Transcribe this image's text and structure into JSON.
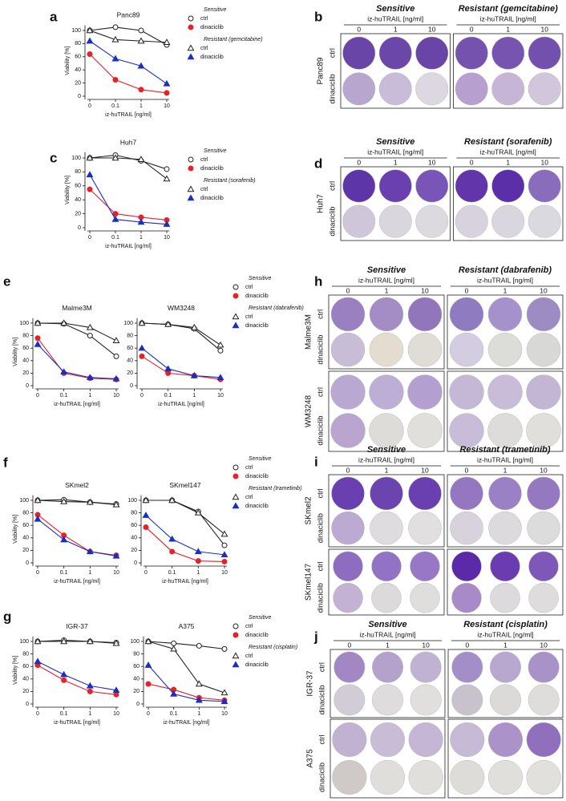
{
  "chart_data": [
    {
      "type": "line",
      "label": "a",
      "title": "Panc89",
      "ylabel": "Viability [%]",
      "xlabel": "iz-huTRAIL [ng/ml]",
      "categories": [
        "0",
        "0.1",
        "1",
        "10"
      ],
      "ylim": [
        0,
        108
      ],
      "yticks": [
        0,
        20,
        40,
        60,
        80,
        100
      ],
      "series": [
        {
          "group": "Sensitive",
          "name": "ctrl",
          "color": "#222222",
          "marker": "circle-open",
          "values": [
            100,
            105,
            100,
            78
          ]
        },
        {
          "name": "dinaciclib",
          "color": "#e8202a",
          "marker": "circle",
          "values": [
            64,
            25,
            10,
            5
          ]
        },
        {
          "group": "Resistant (gemcitabine)",
          "name": "ctrl",
          "color": "#222222",
          "marker": "triangle-open",
          "values": [
            100,
            86,
            84,
            82
          ]
        },
        {
          "name": "dinaciclib",
          "color": "#1a2fc0",
          "marker": "triangle",
          "values": [
            84,
            57,
            46,
            19
          ]
        }
      ]
    },
    {
      "type": "line",
      "label": "c",
      "title": "Huh7",
      "ylabel": "Viability [%]",
      "xlabel": "iz-huTRAIL [ng/ml]",
      "categories": [
        "0",
        "0.1",
        "1",
        "10"
      ],
      "ylim": [
        0,
        108
      ],
      "yticks": [
        0,
        20,
        40,
        60,
        80,
        100
      ],
      "series": [
        {
          "group": "Sensitive",
          "name": "ctrl",
          "color": "#222222",
          "marker": "circle-open",
          "values": [
            100,
            104,
            96,
            84
          ]
        },
        {
          "name": "dinaciclib",
          "color": "#e8202a",
          "marker": "circle",
          "values": [
            55,
            20,
            15,
            11
          ]
        },
        {
          "group": "Resistant (sorafenib)",
          "name": "ctrl",
          "color": "#222222",
          "marker": "triangle-open",
          "values": [
            100,
            100,
            98,
            70
          ]
        },
        {
          "name": "dinaciclib",
          "color": "#1a2fc0",
          "marker": "triangle",
          "values": [
            76,
            12,
            8,
            5
          ]
        }
      ]
    },
    {
      "type": "line",
      "label": "e",
      "title": "Malme3M",
      "ylabel": "Viability [%]",
      "xlabel": "iz-huTRAIL [ng/ml]",
      "categories": [
        "0",
        "0.1",
        "1",
        "10"
      ],
      "ylim": [
        0,
        108
      ],
      "yticks": [
        0,
        20,
        40,
        60,
        80,
        100
      ],
      "series": [
        {
          "color": "#222222",
          "marker": "circle-open",
          "values": [
            100,
            99,
            80,
            47
          ]
        },
        {
          "color": "#e8202a",
          "marker": "circle",
          "values": [
            76,
            20,
            12,
            10
          ]
        },
        {
          "color": "#222222",
          "marker": "triangle-open",
          "values": [
            100,
            100,
            93,
            72
          ]
        },
        {
          "color": "#1a2fc0",
          "marker": "triangle",
          "values": [
            66,
            22,
            13,
            11
          ]
        }
      ]
    },
    {
      "type": "line",
      "title": "WM3248",
      "xlabel": "iz-huTRAIL [ng/ml]",
      "categories": [
        "0",
        "0.1",
        "1",
        "10"
      ],
      "ylim": [
        0,
        108
      ],
      "yticks": [
        0,
        20,
        40,
        60,
        80,
        100
      ],
      "series": [
        {
          "group": "Sensitive",
          "name": "ctrl",
          "color": "#222222",
          "marker": "circle-open",
          "values": [
            100,
            98,
            91,
            56
          ]
        },
        {
          "name": "dinaciclib",
          "color": "#e8202a",
          "marker": "circle",
          "values": [
            47,
            20,
            16,
            10
          ]
        },
        {
          "group": "Resistant (dabrafenib)",
          "name": "ctrl",
          "color": "#222222",
          "marker": "triangle-open",
          "values": [
            100,
            98,
            93,
            65
          ]
        },
        {
          "name": "dinaciclib",
          "color": "#1a2fc0",
          "marker": "triangle",
          "values": [
            60,
            27,
            16,
            13
          ]
        }
      ]
    },
    {
      "type": "line",
      "label": "f",
      "title": "SKmel2",
      "ylabel": "Viability [%]",
      "xlabel": "iz-huTRAIL [ng/ml]",
      "categories": [
        "0",
        "0.1",
        "1",
        "10"
      ],
      "ylim": [
        0,
        108
      ],
      "yticks": [
        0,
        20,
        40,
        60,
        80,
        100
      ],
      "series": [
        {
          "color": "#222222",
          "marker": "circle-open",
          "values": [
            100,
            101,
            97,
            94
          ]
        },
        {
          "color": "#e8202a",
          "marker": "circle",
          "values": [
            77,
            44,
            18,
            12
          ]
        },
        {
          "color": "#222222",
          "marker": "triangle-open",
          "values": [
            100,
            98,
            97,
            93
          ]
        },
        {
          "color": "#1a2fc0",
          "marker": "triangle",
          "values": [
            70,
            37,
            18,
            11
          ]
        }
      ]
    },
    {
      "type": "line",
      "title": "SKmel147",
      "xlabel": "iz-huTRAIL [ng/ml]",
      "categories": [
        "0",
        "0.1",
        "1",
        "10"
      ],
      "ylim": [
        0,
        108
      ],
      "yticks": [
        0,
        20,
        40,
        60,
        80,
        100
      ],
      "series": [
        {
          "group": "Sensitive",
          "name": "ctrl",
          "color": "#222222",
          "marker": "circle-open",
          "values": [
            100,
            100,
            82,
            28
          ]
        },
        {
          "name": "dinaciclib",
          "color": "#e8202a",
          "marker": "circle",
          "values": [
            57,
            18,
            3,
            2
          ]
        },
        {
          "group": "Resistant (trametinib)",
          "name": "ctrl",
          "color": "#222222",
          "marker": "triangle-open",
          "values": [
            100,
            100,
            80,
            46
          ]
        },
        {
          "name": "dinaciclib",
          "color": "#1a2fc0",
          "marker": "triangle",
          "values": [
            76,
            38,
            18,
            13
          ]
        }
      ]
    },
    {
      "type": "line",
      "label": "g",
      "title": "IGR-37",
      "ylabel": "Viability [%]",
      "xlabel": "iz-huTRAIL [ng/ml]",
      "categories": [
        "0",
        "0.1",
        "1",
        "10"
      ],
      "ylim": [
        0,
        108
      ],
      "yticks": [
        0,
        20,
        40,
        60,
        80,
        100
      ],
      "series": [
        {
          "color": "#222222",
          "marker": "circle-open",
          "values": [
            100,
            102,
            100,
            98
          ]
        },
        {
          "color": "#e8202a",
          "marker": "circle",
          "values": [
            62,
            38,
            20,
            15
          ]
        },
        {
          "color": "#222222",
          "marker": "triangle-open",
          "values": [
            100,
            100,
            100,
            97
          ]
        },
        {
          "color": "#1a2fc0",
          "marker": "triangle",
          "values": [
            68,
            47,
            29,
            22
          ]
        }
      ]
    },
    {
      "type": "line",
      "title": "A375",
      "xlabel": "iz-huTRAIL [ng/ml]",
      "categories": [
        "0",
        "0.1",
        "1",
        "10"
      ],
      "ylim": [
        0,
        108
      ],
      "yticks": [
        0,
        20,
        40,
        60,
        80,
        100
      ],
      "series": [
        {
          "group": "Sensitive",
          "name": "ctrl",
          "color": "#222222",
          "marker": "circle-open",
          "values": [
            100,
            97,
            93,
            88
          ]
        },
        {
          "name": "dinaciclib",
          "color": "#e8202a",
          "marker": "circle",
          "values": [
            32,
            23,
            10,
            6
          ]
        },
        {
          "group": "Resistant (cisplatin)",
          "name": "ctrl",
          "color": "#222222",
          "marker": "triangle-open",
          "values": [
            100,
            88,
            32,
            18
          ]
        },
        {
          "name": "dinaciclib",
          "color": "#1a2fc0",
          "marker": "triangle",
          "values": [
            62,
            16,
            6,
            4
          ]
        }
      ]
    }
  ],
  "plates": [
    {
      "label": "b",
      "columns": [
        {
          "title": "Sensitive",
          "unit": "iz-huTRAIL [ng/ml]",
          "doses": [
            "0",
            "1",
            "10"
          ]
        },
        {
          "title": "Resistant (gemcitabine)",
          "unit": "iz-huTRAIL [ng/ml]",
          "doses": [
            "0",
            "1",
            "10"
          ]
        }
      ],
      "blocks": [
        {
          "cell_line": "Panc89",
          "rows": [
            "ctrl",
            "dinaciclib"
          ],
          "colors": [
            [
              "#6a45a8",
              "#6c47aa",
              "#6a45a8",
              "#7552ae",
              "#7654b0",
              "#7350ae"
            ],
            [
              "#b9a6cf",
              "#c9bcd8",
              "#dcd7e0",
              "#b79fcf",
              "#c6b5d6",
              "#d2c6dc"
            ]
          ]
        }
      ]
    },
    {
      "label": "d",
      "columns": [
        {
          "title": "Sensitive",
          "unit": "iz-huTRAIL [ng/ml]",
          "doses": [
            "0",
            "1",
            "10"
          ]
        },
        {
          "title": "Resistant (sorafenib)",
          "unit": "iz-huTRAIL [ng/ml]",
          "doses": [
            "0",
            "1",
            "10"
          ]
        }
      ],
      "blocks": [
        {
          "cell_line": "Huh7",
          "rows": [
            "ctrl",
            "dinaciclib"
          ],
          "colors": [
            [
              "#5e35a8",
              "#6a40b0",
              "#7a55b8",
              "#6236aa",
              "#5a2fa8",
              "#8a6cbc"
            ],
            [
              "#cfc6d9",
              "#dad6de",
              "#dcdadf",
              "#d8d2df",
              "#d9d6df",
              "#dbd9e0"
            ]
          ]
        }
      ]
    },
    {
      "label": "h",
      "columns": [
        {
          "title": "Sensitive",
          "unit": "iz-huTRAIL [ng/ml]",
          "doses": [
            "0",
            "1",
            "10"
          ]
        },
        {
          "title": "Resistant (dabrafenib)",
          "unit": "iz-huTRAIL [ng/ml]",
          "doses": [
            "0",
            "1",
            "10"
          ]
        }
      ],
      "blocks": [
        {
          "cell_line": "Malme3M",
          "rows": [
            "ctrl",
            "dinaciclib"
          ],
          "colors": [
            [
              "#9a80c0",
              "#a48cc4",
              "#9276bc",
              "#8f7bc0",
              "#a592cc",
              "#9d8cc4"
            ],
            [
              "#c9bcd6",
              "#e4dccf",
              "#e0ddd6",
              "#d4cce0",
              "#dcdcd8",
              "#d8d8d6"
            ]
          ]
        },
        {
          "cell_line": "WM3248",
          "rows": [
            "ctrl",
            "dinaciclib"
          ],
          "colors": [
            [
              "#b9a8d2",
              "#bcaed4",
              "#b39fd0",
              "#c4b8d6",
              "#c8bcd8",
              "#c2b6d4"
            ],
            [
              "#b9a5d0",
              "#dedcd8",
              "#e0dfdb",
              "#c8bcd8",
              "#dedcda",
              "#e0dfdb"
            ]
          ]
        }
      ]
    },
    {
      "label": "i",
      "columns": [
        {
          "title": "Sensitive",
          "unit": "iz-huTRAIL [ng/ml]",
          "doses": [
            "0",
            "1",
            "10"
          ]
        },
        {
          "title": "Resistant (trametinib)",
          "unit": "iz-huTRAIL [ng/ml]",
          "doses": [
            "0",
            "1",
            "10"
          ]
        }
      ],
      "blocks": [
        {
          "cell_line": "SKmel2",
          "rows": [
            "ctrl",
            "dinaciclib"
          ],
          "colors": [
            [
              "#6a3fb0",
              "#6c44b0",
              "#6a40b0",
              "#9477c0",
              "#9a80c4",
              "#9478c0"
            ],
            [
              "#bdaad2",
              "#dfdcdf",
              "#e1dfe0",
              "#d8d2dc",
              "#dcdadc",
              "#dddcdc"
            ]
          ]
        },
        {
          "cell_line": "SKmel147",
          "rows": [
            "ctrl",
            "dinaciclib"
          ],
          "colors": [
            [
              "#8e6cc0",
              "#9272c4",
              "#9878c6",
              "#5a2aa8",
              "#6a3cb0",
              "#7d58b8"
            ],
            [
              "#c4b2d4",
              "#dddadc",
              "#e0dedc",
              "#a98ac8",
              "#dcdadc",
              "#dedcdc"
            ]
          ]
        }
      ]
    },
    {
      "label": "j",
      "columns": [
        {
          "title": "Sensitive",
          "unit": "iz-huTRAIL [ng/ml]",
          "doses": [
            "0",
            "1",
            "10"
          ]
        },
        {
          "title": "Resistant (cisplatin)",
          "unit": "iz-huTRAIL [ng/ml]",
          "doses": [
            "0",
            "1",
            "10"
          ]
        }
      ],
      "blocks": [
        {
          "cell_line": "IGR-37",
          "rows": [
            "ctrl",
            "dinaciclib"
          ],
          "colors": [
            [
              "#a287c4",
              "#b4a2cc",
              "#c0b2d2",
              "#a48ec8",
              "#b8a8cf",
              "#a892c8"
            ],
            [
              "#d2ccd6",
              "#dedcdc",
              "#e0dfdd",
              "#c8c2cc",
              "#dcdad8",
              "#dedddc"
            ]
          ]
        },
        {
          "cell_line": "A375",
          "rows": [
            "ctrl",
            "dinaciclib"
          ],
          "colors": [
            [
              "#c0b2d0",
              "#c8bcd6",
              "#c4b6d4",
              "#c6bad6",
              "#ab92c8",
              "#9070bc"
            ],
            [
              "#cfcac8",
              "#dfdedb",
              "#e0dfdc",
              "#dedcd8",
              "#e0dfdc",
              "#e1e0dd"
            ]
          ]
        }
      ]
    }
  ]
}
